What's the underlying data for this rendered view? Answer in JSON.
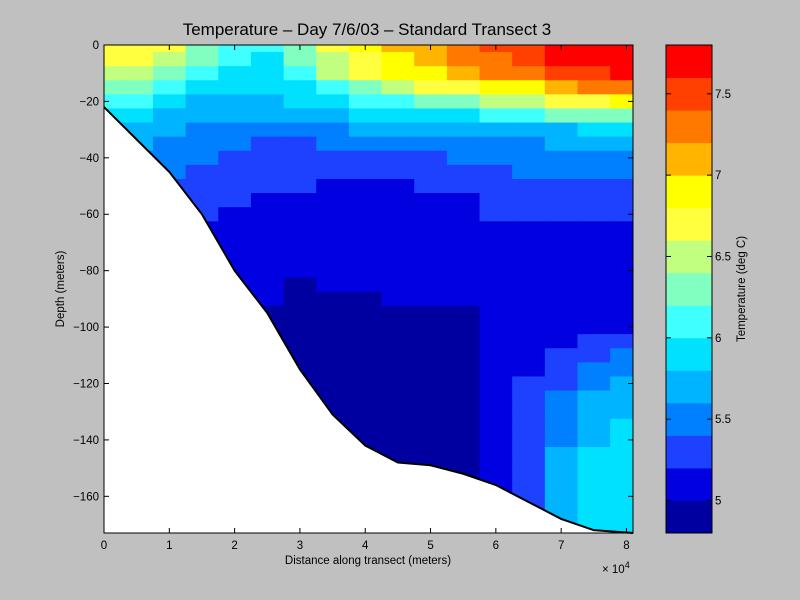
{
  "chart_data": {
    "type": "heatmap",
    "subtype": "filled-contour depth section",
    "title": "Temperature – Day 7/6/03 – Standard Transect 3",
    "xlabel": "Distance along transect (meters)",
    "ylabel": "Depth (meters)",
    "x_exponent_label": "× 10",
    "x_exponent": "4",
    "xlim": [
      0,
      81000
    ],
    "ylim": [
      -173,
      0
    ],
    "x_ticks": [
      0,
      1,
      2,
      3,
      4,
      5,
      6,
      7,
      8
    ],
    "x_tick_labels": [
      "0",
      "1",
      "2",
      "3",
      "4",
      "5",
      "6",
      "7",
      "8"
    ],
    "y_ticks": [
      0,
      -20,
      -40,
      -60,
      -80,
      -100,
      -120,
      -140,
      -160
    ],
    "y_tick_labels": [
      "0",
      "−20",
      "−40",
      "−60",
      "−80",
      "−100",
      "−120",
      "−140",
      "−160"
    ],
    "colorbar": {
      "label": "Temperature (deg C)",
      "range": [
        4.8,
        7.8
      ],
      "levels": [
        4.8,
        5.0,
        5.2,
        5.4,
        5.6,
        5.8,
        6.0,
        6.2,
        6.4,
        6.6,
        6.8,
        7.0,
        7.2,
        7.4,
        7.6,
        7.8
      ],
      "colors": [
        "#0000a0",
        "#0000e0",
        "#1e40ff",
        "#0080ff",
        "#00b4ff",
        "#00e0ff",
        "#40ffff",
        "#80ffc0",
        "#c0ff80",
        "#ffff40",
        "#ffff00",
        "#ffb400",
        "#ff7800",
        "#ff4000",
        "#ff0000",
        "#c00000"
      ],
      "ticks": [
        5,
        5.5,
        6,
        6.5,
        7,
        7.5
      ],
      "tick_labels": [
        "5",
        "5.5",
        "6",
        "6.5",
        "7",
        "7.5"
      ]
    },
    "bottom_profile": {
      "x_km": [
        0,
        10,
        15,
        20,
        25,
        30,
        35,
        40,
        45,
        50,
        55,
        60,
        65,
        70,
        75,
        81
      ],
      "depth_m": [
        -22,
        -45,
        -60,
        -80,
        -95,
        -115,
        -131,
        -142,
        -148,
        -149,
        -152,
        -156,
        -162,
        -168,
        -172,
        -173
      ]
    },
    "temperature_grid": {
      "x_km": [
        0,
        5,
        10,
        15,
        20,
        25,
        30,
        35,
        40,
        45,
        50,
        55,
        60,
        65,
        70,
        75,
        80
      ],
      "depth_m": [
        0,
        -5,
        -10,
        -15,
        -20,
        -25,
        -30,
        -35,
        -40,
        -45,
        -50,
        -55,
        -60,
        -65,
        -70,
        -75,
        -80,
        -85,
        -90,
        -95,
        -100,
        -105,
        -110,
        -115,
        -120,
        -125,
        -130,
        -135,
        -140,
        -145,
        -150,
        -155,
        -160,
        -165,
        -170,
        -175
      ],
      "values_degC": [
        [
          6.7,
          6.7,
          6.6,
          6.3,
          6.1,
          6.0,
          6.3,
          6.6,
          6.8,
          7.0,
          7.1,
          7.2,
          7.4,
          7.5,
          7.6,
          7.7,
          7.7
        ],
        [
          6.6,
          6.6,
          6.5,
          6.2,
          6.0,
          5.9,
          6.2,
          6.5,
          6.7,
          6.9,
          7.0,
          7.2,
          7.3,
          7.4,
          7.6,
          7.7,
          7.7
        ],
        [
          6.5,
          6.4,
          6.3,
          6.1,
          5.9,
          5.9,
          6.1,
          6.4,
          6.6,
          6.8,
          6.9,
          7.0,
          7.2,
          7.3,
          7.4,
          7.5,
          7.6
        ],
        [
          6.3,
          6.2,
          6.1,
          5.9,
          5.8,
          5.8,
          5.9,
          6.1,
          6.3,
          6.5,
          6.6,
          6.7,
          6.8,
          6.9,
          7.0,
          7.2,
          7.3
        ],
        [
          6.1,
          6.0,
          5.9,
          5.7,
          5.7,
          5.7,
          5.8,
          5.9,
          6.0,
          6.1,
          6.2,
          6.3,
          6.4,
          6.5,
          6.6,
          6.7,
          6.8
        ],
        [
          5.9,
          5.8,
          5.7,
          5.6,
          5.6,
          5.6,
          5.6,
          5.7,
          5.8,
          5.8,
          5.8,
          5.9,
          6.0,
          6.1,
          6.2,
          6.3,
          6.3
        ],
        [
          5.7,
          5.7,
          5.6,
          5.5,
          5.5,
          5.5,
          5.5,
          5.5,
          5.6,
          5.6,
          5.6,
          5.6,
          5.7,
          5.7,
          5.7,
          5.8,
          5.8
        ],
        [
          5.6,
          5.6,
          5.5,
          5.4,
          5.4,
          5.3,
          5.3,
          5.4,
          5.4,
          5.4,
          5.4,
          5.5,
          5.5,
          5.5,
          5.6,
          5.6,
          5.6
        ],
        [
          5.5,
          5.5,
          5.4,
          5.4,
          5.3,
          5.2,
          5.2,
          5.3,
          5.3,
          5.3,
          5.3,
          5.4,
          5.4,
          5.4,
          5.5,
          5.5,
          5.5
        ],
        [
          5.5,
          5.4,
          5.4,
          5.3,
          5.3,
          5.2,
          5.2,
          5.2,
          5.2,
          5.2,
          5.3,
          5.3,
          5.3,
          5.4,
          5.4,
          5.4,
          5.4
        ],
        [
          5.4,
          5.4,
          5.3,
          5.3,
          5.2,
          5.2,
          5.2,
          5.1,
          5.1,
          5.1,
          5.2,
          5.2,
          5.3,
          5.3,
          5.3,
          5.3,
          5.3
        ],
        [
          5.4,
          5.3,
          5.3,
          5.2,
          5.2,
          5.1,
          5.1,
          5.1,
          5.1,
          5.1,
          5.1,
          5.1,
          5.2,
          5.2,
          5.3,
          5.3,
          5.3
        ],
        [
          5.3,
          5.3,
          5.2,
          5.2,
          5.1,
          5.1,
          5.1,
          5.1,
          5.1,
          5.1,
          5.1,
          5.1,
          5.2,
          5.2,
          5.2,
          5.2,
          5.2
        ],
        [
          5.3,
          5.3,
          5.2,
          5.1,
          5.1,
          5.1,
          5.1,
          5.1,
          5.1,
          5.1,
          5.1,
          5.1,
          5.1,
          5.1,
          5.1,
          5.1,
          5.1
        ],
        [
          5.3,
          5.2,
          5.2,
          5.1,
          5.1,
          5.1,
          5.0,
          5.1,
          5.1,
          5.1,
          5.1,
          5.1,
          5.0,
          5.0,
          5.0,
          5.1,
          5.1
        ],
        [
          5.2,
          5.2,
          5.1,
          5.1,
          5.1,
          5.0,
          5.0,
          5.0,
          5.0,
          5.0,
          5.0,
          5.0,
          5.0,
          5.0,
          5.0,
          5.0,
          5.0
        ],
        [
          5.2,
          5.2,
          5.1,
          5.1,
          5.0,
          5.0,
          5.0,
          5.0,
          5.0,
          5.0,
          5.0,
          5.0,
          5.0,
          5.0,
          5.0,
          5.0,
          5.0
        ],
        [
          5.2,
          5.1,
          5.1,
          5.0,
          5.0,
          5.0,
          4.9,
          5.0,
          5.0,
          5.0,
          5.0,
          5.0,
          5.0,
          5.0,
          5.0,
          5.0,
          5.0
        ],
        [
          5.1,
          5.1,
          5.0,
          5.0,
          5.0,
          5.0,
          4.9,
          4.9,
          4.9,
          5.0,
          5.0,
          5.0,
          5.0,
          5.0,
          5.0,
          5.0,
          5.0
        ],
        [
          5.1,
          5.1,
          5.0,
          5.0,
          5.0,
          4.9,
          4.9,
          4.9,
          4.9,
          4.9,
          4.9,
          4.9,
          5.0,
          5.0,
          5.0,
          5.0,
          5.0
        ],
        [
          5.1,
          5.0,
          5.0,
          5.0,
          4.9,
          4.9,
          4.9,
          4.9,
          4.9,
          4.9,
          4.9,
          4.9,
          5.0,
          5.0,
          5.0,
          5.1,
          5.1
        ],
        [
          5.0,
          5.0,
          5.0,
          4.9,
          4.9,
          4.9,
          4.9,
          4.9,
          4.9,
          4.9,
          4.9,
          4.9,
          5.0,
          5.0,
          5.1,
          5.2,
          5.3
        ],
        [
          5.0,
          5.0,
          4.9,
          4.9,
          4.9,
          4.9,
          4.9,
          4.9,
          4.9,
          4.9,
          4.9,
          4.9,
          5.0,
          5.1,
          5.2,
          5.3,
          5.4
        ],
        [
          5.0,
          5.0,
          4.9,
          4.9,
          4.9,
          4.9,
          4.9,
          4.9,
          4.9,
          4.9,
          4.9,
          4.9,
          5.0,
          5.1,
          5.3,
          5.4,
          5.5
        ],
        [
          5.0,
          4.9,
          4.9,
          4.9,
          4.9,
          4.9,
          4.9,
          4.9,
          4.9,
          4.9,
          4.9,
          4.9,
          5.0,
          5.2,
          5.3,
          5.5,
          5.6
        ],
        [
          5.0,
          4.9,
          4.9,
          4.9,
          4.9,
          4.9,
          4.9,
          4.9,
          4.9,
          4.9,
          4.9,
          4.9,
          5.0,
          5.2,
          5.4,
          5.6,
          5.7
        ],
        [
          4.9,
          4.9,
          4.9,
          4.9,
          4.9,
          4.9,
          4.9,
          4.9,
          4.9,
          4.9,
          4.9,
          4.9,
          5.0,
          5.2,
          5.4,
          5.6,
          5.7
        ],
        [
          4.9,
          4.9,
          4.9,
          4.9,
          4.9,
          4.9,
          4.9,
          4.9,
          4.9,
          4.9,
          4.9,
          4.9,
          5.0,
          5.2,
          5.5,
          5.7,
          5.8
        ],
        [
          4.9,
          4.9,
          4.9,
          4.9,
          4.9,
          4.9,
          4.9,
          4.9,
          4.9,
          4.9,
          4.9,
          4.9,
          5.0,
          5.3,
          5.5,
          5.7,
          5.9
        ],
        [
          4.9,
          4.9,
          4.9,
          4.9,
          4.9,
          4.9,
          4.9,
          4.9,
          4.9,
          4.9,
          4.9,
          4.9,
          5.0,
          5.3,
          5.6,
          5.8,
          5.9
        ],
        [
          4.9,
          4.9,
          4.9,
          4.9,
          4.9,
          4.9,
          4.9,
          4.9,
          4.9,
          4.9,
          4.9,
          4.9,
          5.0,
          5.3,
          5.6,
          5.8,
          5.9
        ],
        [
          4.9,
          4.9,
          4.9,
          4.9,
          4.9,
          4.9,
          4.9,
          4.9,
          4.9,
          4.9,
          4.9,
          4.9,
          5.0,
          5.3,
          5.6,
          5.8,
          5.9
        ],
        [
          4.9,
          4.9,
          4.9,
          4.9,
          4.9,
          4.9,
          4.9,
          4.9,
          4.9,
          4.9,
          4.9,
          4.9,
          5.0,
          5.3,
          5.6,
          5.8,
          5.9
        ],
        [
          4.9,
          4.9,
          4.9,
          4.9,
          4.9,
          4.9,
          4.9,
          4.9,
          4.9,
          4.9,
          4.9,
          4.9,
          5.0,
          5.3,
          5.6,
          5.8,
          5.9
        ],
        [
          4.9,
          4.9,
          4.9,
          4.9,
          4.9,
          4.9,
          4.9,
          4.9,
          4.9,
          4.9,
          4.9,
          4.9,
          5.0,
          5.3,
          5.6,
          5.8,
          5.9
        ],
        [
          4.9,
          4.9,
          4.9,
          4.9,
          4.9,
          4.9,
          4.9,
          4.9,
          4.9,
          4.9,
          4.9,
          4.9,
          5.0,
          5.3,
          5.6,
          5.8,
          5.9
        ]
      ]
    },
    "grid": false,
    "legend_placement": "right (colorbar)"
  }
}
